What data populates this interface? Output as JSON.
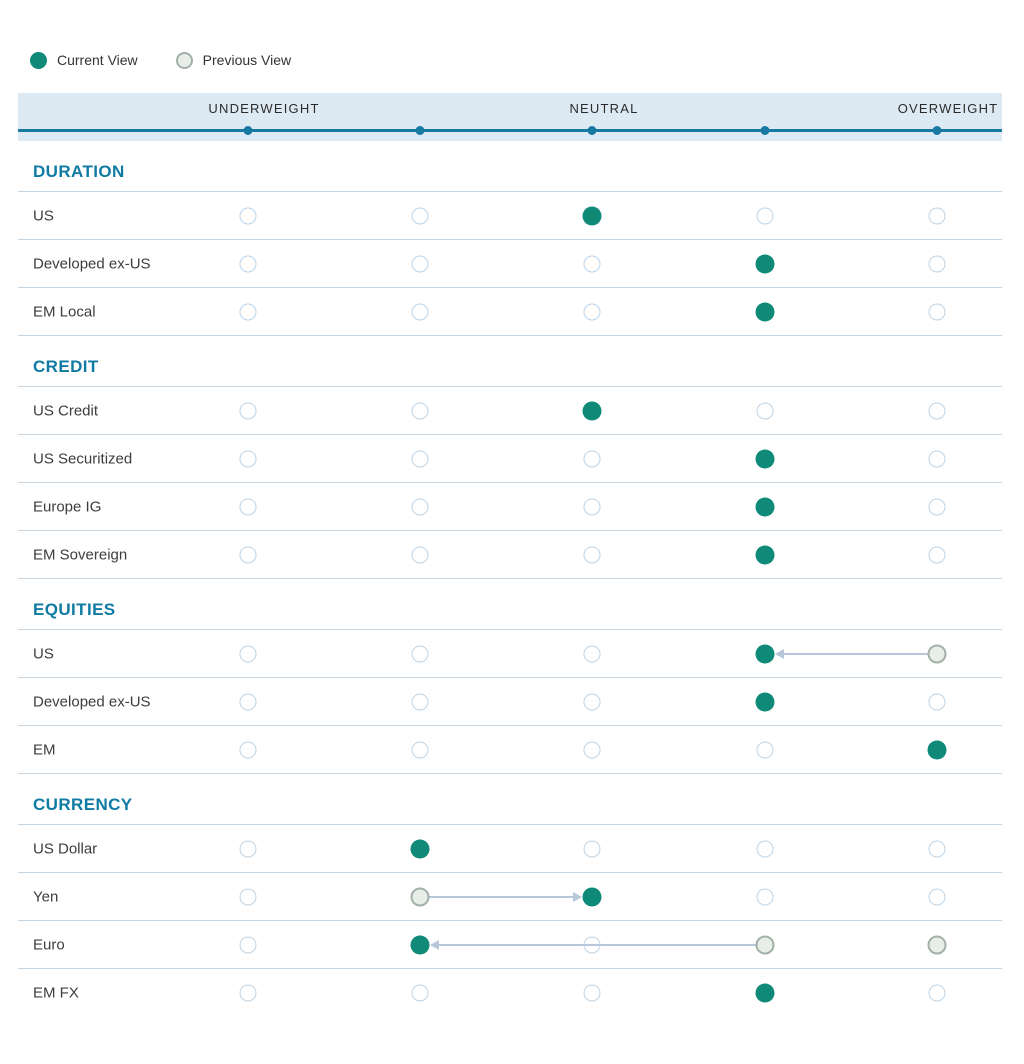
{
  "legend": {
    "current_label": "Current View",
    "previous_label": "Previous View"
  },
  "axis": {
    "labels": [
      "UNDERWEIGHT",
      "NEUTRAL",
      "OVERWEIGHT"
    ],
    "tick_count": 5
  },
  "colors": {
    "current_dot": "#0f8a78",
    "previous_fill": "#e7eee9",
    "previous_border": "#a2b1a7",
    "empty_border": "#bdd3e5",
    "axis_line": "#1879a2",
    "header_background": "#deeaf3",
    "section_title": "#0f7ba3",
    "divider": "#c5d4e1",
    "arrow": "#b5c7d9"
  },
  "chart_data": {
    "type": "scatter",
    "subtype": "dot-positioning",
    "scale_min": 1,
    "scale_max": 5,
    "scale_labels": [
      {
        "position": 1,
        "label": "UNDERWEIGHT"
      },
      {
        "position": 3,
        "label": "NEUTRAL"
      },
      {
        "position": 5,
        "label": "OVERWEIGHT"
      }
    ],
    "sections": [
      {
        "title": "DURATION",
        "rows": [
          {
            "label": "US",
            "current": 3,
            "previous": [],
            "movement": null
          },
          {
            "label": "Developed ex-US",
            "current": 4,
            "previous": [],
            "movement": null
          },
          {
            "label": "EM Local",
            "current": 4,
            "previous": [],
            "movement": null
          }
        ]
      },
      {
        "title": "CREDIT",
        "rows": [
          {
            "label": "US Credit",
            "current": 3,
            "previous": [],
            "movement": null
          },
          {
            "label": "US Securitized",
            "current": 4,
            "previous": [],
            "movement": null
          },
          {
            "label": "Europe IG",
            "current": 4,
            "previous": [],
            "movement": null
          },
          {
            "label": "EM Sovereign",
            "current": 4,
            "previous": [],
            "movement": null
          }
        ]
      },
      {
        "title": "EQUITIES",
        "rows": [
          {
            "label": "US",
            "current": 4,
            "previous": [
              5
            ],
            "movement": {
              "from": 5,
              "to": 4
            }
          },
          {
            "label": "Developed ex-US",
            "current": 4,
            "previous": [],
            "movement": null
          },
          {
            "label": "EM",
            "current": 5,
            "previous": [],
            "movement": null
          }
        ]
      },
      {
        "title": "CURRENCY",
        "rows": [
          {
            "label": "US Dollar",
            "current": 2,
            "previous": [],
            "movement": null
          },
          {
            "label": "Yen",
            "current": 3,
            "previous": [
              2
            ],
            "movement": {
              "from": 2,
              "to": 3
            }
          },
          {
            "label": "Euro",
            "current": 2,
            "previous": [
              4,
              5
            ],
            "movement": {
              "from": 4,
              "to": 2
            }
          },
          {
            "label": "EM FX",
            "current": 4,
            "previous": [],
            "movement": null
          }
        ]
      }
    ]
  }
}
